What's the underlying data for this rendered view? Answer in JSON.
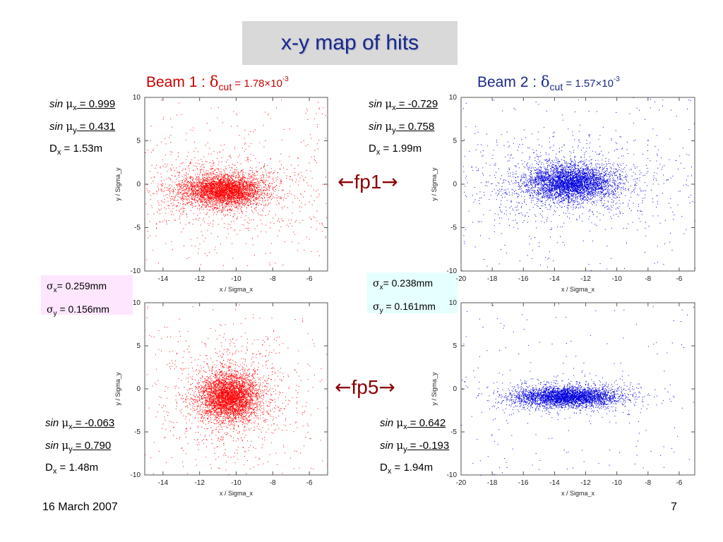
{
  "slide_title": "x-y  map of hits",
  "footer": {
    "date": "16 March 2007",
    "page": "7"
  },
  "beams": [
    {
      "label": "Beam 1 : ",
      "delta": "δ",
      "sub": "cut",
      "value": " = 1.78×10",
      "exp": "-3",
      "color": "#cc0000"
    },
    {
      "label": "Beam 2 : ",
      "delta": "δ",
      "sub": "cut",
      "value": " = 1.57×10",
      "exp": "-3",
      "color": "#1a2a8a"
    }
  ],
  "arrows": [
    {
      "label": "fp1",
      "left": "←",
      "right": "→"
    },
    {
      "label": "fp5",
      "left": "←",
      "right": "→"
    }
  ],
  "sigma_boxes": [
    {
      "sx_sym": "σ",
      "sx_sub": "x",
      "sx_val": "= 0.259mm",
      "sy_sym": "σ",
      "sy_sub": "y",
      "sy_val": " = 0.156mm"
    },
    {
      "sx_sym": "σ",
      "sx_sub": "x",
      "sx_val": "= 0.238mm",
      "sy_sym": "σ",
      "sy_sub": "y",
      "sy_val": " = 0.161mm"
    }
  ],
  "info_blocks": [
    {
      "sin": "sin",
      "mu": "μ",
      "mux_sub": "x",
      "mux_val": " = 0.999",
      "muy_sub": "y",
      "muy_val": " = 0.431",
      "d": "D",
      "d_sub": "x",
      "d_val": " = 1.53m"
    },
    {
      "sin": "sin",
      "mu": "μ",
      "mux_sub": "x",
      "mux_val": " = -0.729",
      "muy_sub": "y",
      "muy_val": " = 0.758",
      "d": "D",
      "d_sub": "x",
      "d_val": " = 1.99m"
    },
    {
      "sin": "sin",
      "mu": "μ",
      "mux_sub": "x",
      "mux_val": " = -0.063",
      "muy_sub": "y",
      "muy_val": " = 0.790",
      "d": "D",
      "d_sub": "x",
      "d_val": " = 1.48m"
    },
    {
      "sin": "sin",
      "mu": "μ",
      "mux_sub": "x",
      "mux_val": " = 0.642",
      "muy_sub": "y",
      "muy_val": " = -0.193",
      "d": "D",
      "d_sub": "x",
      "d_val": " = 1.94m"
    }
  ],
  "chart_data": [
    {
      "type": "scatter",
      "name": "Beam 1 fp1",
      "xlabel": "x / Sigma_x",
      "ylabel": "y / Sigma_y",
      "xlim": [
        -15,
        -5
      ],
      "ylim": [
        -10,
        10
      ],
      "xticks": [
        -14,
        -12,
        -10,
        -8,
        -6
      ],
      "yticks": [
        -10,
        -5,
        0,
        5,
        10
      ],
      "color": "#ff0000",
      "center": [
        -10.7,
        -0.7
      ],
      "spread": [
        1.1,
        0.9
      ],
      "halo_spread": [
        2.6,
        2.4
      ],
      "points": 5000
    },
    {
      "type": "scatter",
      "name": "Beam 2 fp1",
      "xlabel": "x / Sigma_x",
      "ylabel": "y / Sigma_y",
      "xlim": [
        -20,
        -5
      ],
      "ylim": [
        -10,
        10
      ],
      "xticks": [
        -20,
        -18,
        -16,
        -14,
        -12,
        -10,
        -8,
        -6
      ],
      "yticks": [
        -10,
        -5,
        0,
        5,
        10
      ],
      "color": "#0000dd",
      "center": [
        -13.0,
        0.2
      ],
      "spread": [
        1.4,
        1.0
      ],
      "halo_spread": [
        3.5,
        2.5
      ],
      "points": 5000
    },
    {
      "type": "scatter",
      "name": "Beam 1 fp5",
      "xlabel": "x / Sigma_x",
      "ylabel": "y / Sigma_y",
      "xlim": [
        -15,
        -5
      ],
      "ylim": [
        -10,
        10
      ],
      "xticks": [
        -14,
        -12,
        -10,
        -8,
        -6
      ],
      "yticks": [
        -10,
        -5,
        0,
        5,
        10
      ],
      "color": "#ff0000",
      "center": [
        -10.4,
        -0.9
      ],
      "spread": [
        0.8,
        1.3
      ],
      "halo_spread": [
        1.8,
        3.5
      ],
      "points": 5000
    },
    {
      "type": "scatter",
      "name": "Beam 2 fp5",
      "xlabel": "x / Sigma_x",
      "ylabel": "y / Sigma_y",
      "xlim": [
        -20,
        -5
      ],
      "ylim": [
        -10,
        10
      ],
      "xticks": [
        -20,
        -18,
        -16,
        -14,
        -12,
        -10,
        -8,
        -6
      ],
      "yticks": [
        -10,
        -5,
        0,
        5,
        10
      ],
      "color": "#0000dd",
      "center": [
        -13.2,
        -0.9
      ],
      "spread": [
        1.6,
        0.55
      ],
      "halo_spread": [
        2.4,
        1.0
      ],
      "points": 4000
    }
  ]
}
